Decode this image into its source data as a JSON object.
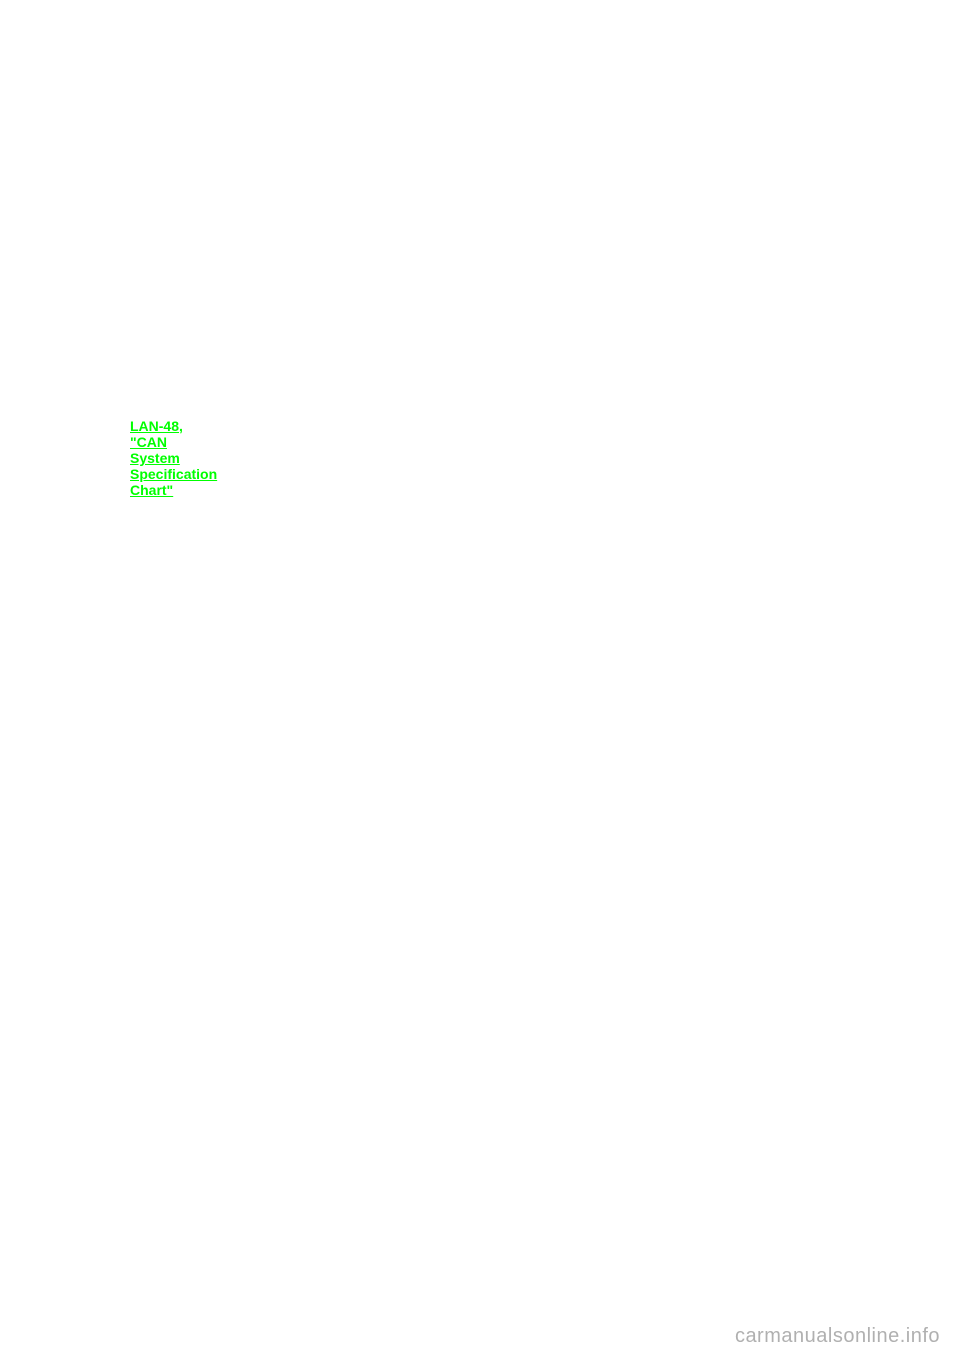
{
  "link": {
    "text": "LAN-48, \"CAN System Specification Chart\"",
    "color": "#00ff00"
  },
  "watermark": {
    "text": "carmanualsonline.info",
    "color": "#b0b0b0"
  }
}
